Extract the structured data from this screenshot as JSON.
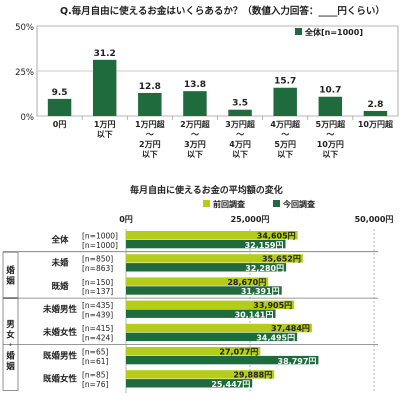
{
  "chart_data": [
    {
      "type": "bar",
      "title": "Q.毎月自由に使えるお金はいくらあるか？（数値入力回答：____円くらい）",
      "legend": "全体[n=1000]",
      "y_ticks": [
        "50%",
        "25%",
        "0%"
      ],
      "ylim": [
        0,
        50
      ],
      "categories": [
        [
          "0円"
        ],
        [
          "1万円",
          "以下"
        ],
        [
          "1万円超",
          "～",
          "2万円",
          "以下"
        ],
        [
          "2万円超",
          "～",
          "3万円",
          "以下"
        ],
        [
          "3万円超",
          "～",
          "4万円",
          "以下"
        ],
        [
          "4万円超",
          "～",
          "5万円",
          "以下"
        ],
        [
          "5万円超",
          "～",
          "10万円",
          "以下"
        ],
        [
          "10万円超"
        ]
      ],
      "values": [
        9.5,
        31.2,
        12.8,
        13.8,
        3.5,
        15.7,
        10.7,
        2.8
      ],
      "value_labels": [
        "9.5",
        "31.2",
        "12.8",
        "13.8",
        "3.5",
        "15.7",
        "10.7",
        "2.8"
      ],
      "color": "#1f6b3d"
    },
    {
      "type": "bar",
      "orientation": "horizontal",
      "title": "毎月自由に使えるお金の平均額の変化",
      "x_ticks": [
        "0円",
        "25,000円",
        "50,000円"
      ],
      "xlim": [
        0,
        50000
      ],
      "series": [
        {
          "name": "前回調査",
          "color": "#b5cc18"
        },
        {
          "name": "今回調査",
          "color": "#1f6b3d"
        }
      ],
      "side_groups": [
        {
          "label": "婚姻",
          "rows": [
            1,
            2
          ]
        },
        {
          "label": "男女・婚姻",
          "rows": [
            3,
            4,
            5,
            6
          ]
        }
      ],
      "rows": [
        {
          "label": "全体",
          "n_prev": "[n=1000]",
          "n_curr": "[n=1000]",
          "prev": 34605,
          "curr": 32159,
          "prev_label": "34,605円",
          "curr_label": "32,159円"
        },
        {
          "label": "未婚",
          "n_prev": "[n=850]",
          "n_curr": "[n=863]",
          "prev": 35652,
          "curr": 32280,
          "prev_label": "35,652円",
          "curr_label": "32,280円"
        },
        {
          "label": "既婚",
          "n_prev": "[n=150]",
          "n_curr": "[n=137]",
          "prev": 28670,
          "curr": 31391,
          "prev_label": "28,670円",
          "curr_label": "31,391円"
        },
        {
          "label": "未婚男性",
          "n_prev": "[n=435]",
          "n_curr": "[n=439]",
          "prev": 33905,
          "curr": 30141,
          "prev_label": "33,905円",
          "curr_label": "30,141円"
        },
        {
          "label": "未婚女性",
          "n_prev": "[n=415]",
          "n_curr": "[n=424]",
          "prev": 37484,
          "curr": 34495,
          "prev_label": "37,484円",
          "curr_label": "34,495円"
        },
        {
          "label": "既婚男性",
          "n_prev": "[n=65]",
          "n_curr": "[n=61]",
          "prev": 27077,
          "curr": 38797,
          "prev_label": "27,077円",
          "curr_label": "38,797円"
        },
        {
          "label": "既婚女性",
          "n_prev": "[n=85]",
          "n_curr": "[n=76]",
          "prev": 29888,
          "curr": 25447,
          "prev_label": "29,888円",
          "curr_label": "25,447円"
        }
      ]
    }
  ]
}
